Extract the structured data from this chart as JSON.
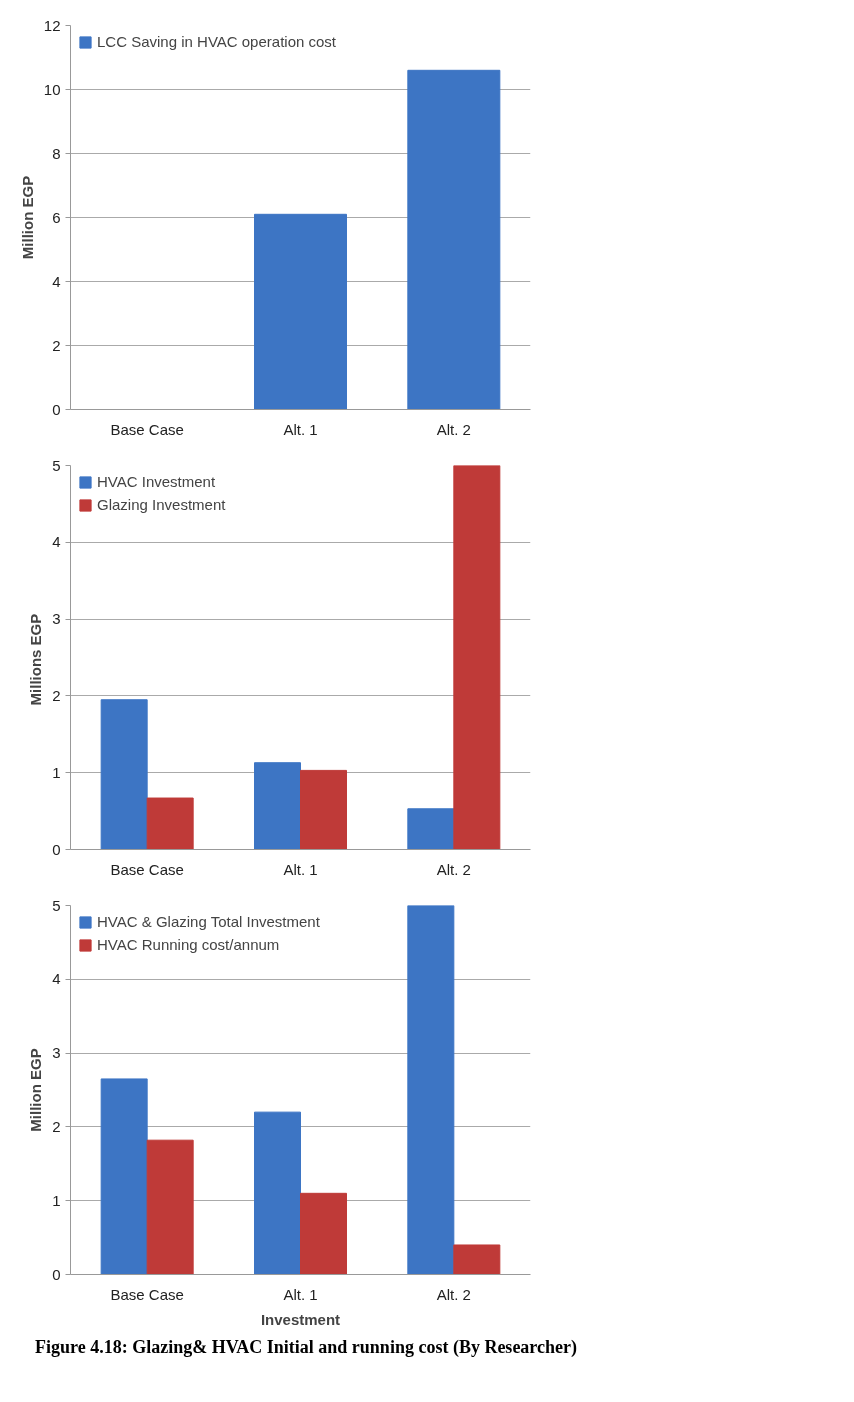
{
  "chart_data": [
    {
      "type": "bar",
      "ylabel": "Million EGP",
      "categories": [
        "Base Case",
        "Alt. 1",
        "Alt. 2"
      ],
      "ylim": [
        0,
        12
      ],
      "yticks": [
        0,
        2,
        4,
        6,
        8,
        10,
        12
      ],
      "grid": "y",
      "legend": "top left",
      "series": [
        {
          "name": "LCC Saving in HVAC operation cost",
          "color": "#3d75c4",
          "values": [
            0,
            6.1,
            10.6
          ]
        }
      ]
    },
    {
      "type": "bar",
      "ylabel": "Millions  EGP",
      "categories": [
        "Base Case",
        "Alt. 1",
        "Alt. 2"
      ],
      "ylim": [
        0,
        5
      ],
      "yticks": [
        0,
        1,
        2,
        3,
        4,
        5
      ],
      "grid": "y",
      "legend": "top left",
      "series": [
        {
          "name": "HVAC Investment",
          "color": "#3d75c4",
          "values": [
            1.95,
            1.13,
            0.53
          ]
        },
        {
          "name": "Glazing Investment",
          "color": "#bf3a38",
          "values": [
            0.67,
            1.03,
            5
          ]
        }
      ]
    },
    {
      "type": "bar",
      "ylabel": "Million EGP",
      "xlabel": "Investment",
      "categories": [
        "Base Case",
        "Alt. 1",
        "Alt. 2"
      ],
      "ylim": [
        0,
        5
      ],
      "yticks": [
        0,
        1,
        2,
        3,
        4,
        5
      ],
      "grid": "y",
      "legend": "top left",
      "series": [
        {
          "name": "HVAC & Glazing Total Investment",
          "color": "#3d75c4",
          "values": [
            2.65,
            2.2,
            5
          ]
        },
        {
          "name": "HVAC Running cost/annum",
          "color": "#bf3a38",
          "values": [
            1.82,
            1.1,
            0.4
          ]
        }
      ],
      "annotations": [
        "Figure 4.18: Glazing& HVAC Initial and running cost (By Researcher)"
      ]
    }
  ]
}
